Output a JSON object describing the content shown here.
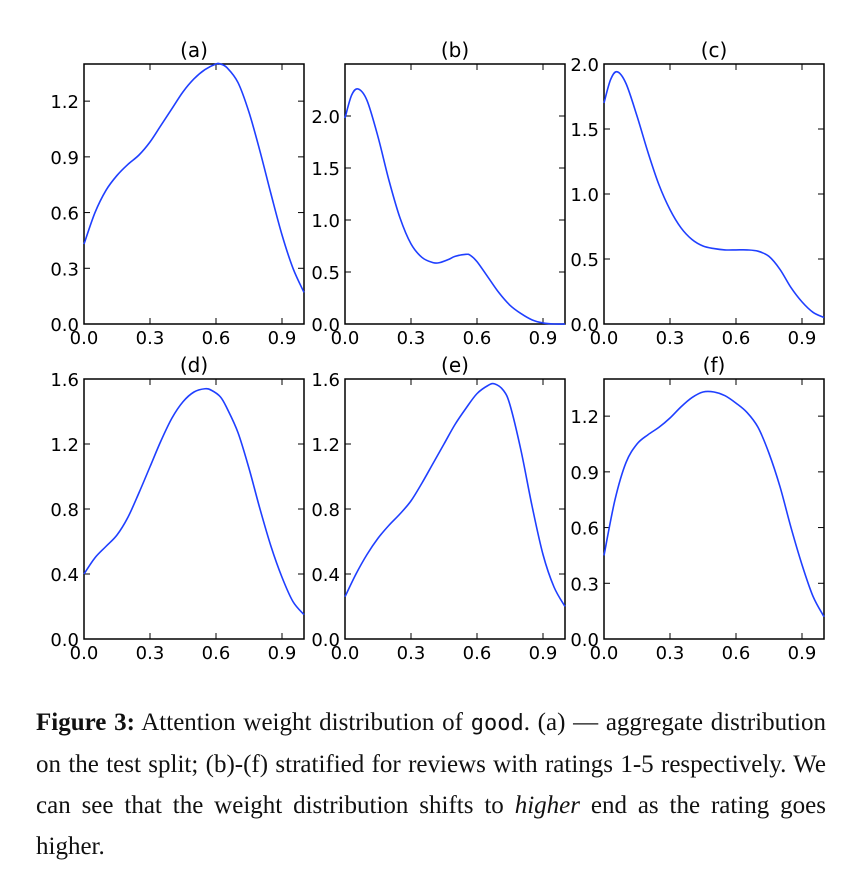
{
  "chart_data": [
    {
      "type": "line",
      "title": "(a)",
      "xlim": [
        0,
        1
      ],
      "ylim": [
        0,
        1.4
      ],
      "xticks": [
        "0.0",
        "0.3",
        "0.6",
        "0.9"
      ],
      "yticks": [
        "0.0",
        "0.3",
        "0.6",
        "0.9",
        "1.2"
      ],
      "x": [
        0,
        0.05,
        0.1,
        0.15,
        0.2,
        0.25,
        0.3,
        0.35,
        0.4,
        0.45,
        0.5,
        0.55,
        0.6,
        0.62,
        0.65,
        0.7,
        0.75,
        0.8,
        0.85,
        0.9,
        0.95,
        1.0
      ],
      "y": [
        0.43,
        0.6,
        0.72,
        0.8,
        0.86,
        0.91,
        0.98,
        1.07,
        1.16,
        1.25,
        1.32,
        1.37,
        1.4,
        1.4,
        1.38,
        1.3,
        1.14,
        0.93,
        0.7,
        0.48,
        0.3,
        0.17
      ]
    },
    {
      "type": "line",
      "title": "(b)",
      "xlim": [
        0,
        1
      ],
      "ylim": [
        0,
        2.5
      ],
      "xticks": [
        "0.0",
        "0.3",
        "0.6",
        "0.9"
      ],
      "yticks": [
        "0.0",
        "0.5",
        "1.0",
        "1.5",
        "2.0"
      ],
      "x": [
        0,
        0.03,
        0.06,
        0.1,
        0.15,
        0.2,
        0.25,
        0.3,
        0.35,
        0.4,
        0.43,
        0.47,
        0.5,
        0.55,
        0.57,
        0.6,
        0.65,
        0.7,
        0.75,
        0.8,
        0.85,
        0.9,
        0.95,
        1.0
      ],
      "y": [
        1.98,
        2.2,
        2.26,
        2.15,
        1.8,
        1.38,
        1.02,
        0.77,
        0.64,
        0.59,
        0.59,
        0.62,
        0.65,
        0.67,
        0.66,
        0.6,
        0.45,
        0.3,
        0.18,
        0.1,
        0.04,
        0.01,
        0.0,
        0.0
      ]
    },
    {
      "type": "line",
      "title": "(c)",
      "xlim": [
        0,
        1
      ],
      "ylim": [
        0,
        2.0
      ],
      "xticks": [
        "0.0",
        "0.3",
        "0.6",
        "0.9"
      ],
      "yticks": [
        "0.0",
        "0.5",
        "1.0",
        "1.5",
        "2.0"
      ],
      "x": [
        0,
        0.03,
        0.06,
        0.1,
        0.15,
        0.2,
        0.25,
        0.3,
        0.35,
        0.4,
        0.45,
        0.5,
        0.55,
        0.6,
        0.65,
        0.7,
        0.75,
        0.8,
        0.85,
        0.9,
        0.95,
        1.0
      ],
      "y": [
        1.7,
        1.88,
        1.94,
        1.85,
        1.6,
        1.32,
        1.07,
        0.88,
        0.74,
        0.65,
        0.6,
        0.58,
        0.57,
        0.57,
        0.57,
        0.56,
        0.52,
        0.42,
        0.28,
        0.17,
        0.09,
        0.05
      ]
    },
    {
      "type": "line",
      "title": "(d)",
      "xlim": [
        0,
        1
      ],
      "ylim": [
        0,
        1.6
      ],
      "xticks": [
        "0.0",
        "0.3",
        "0.6",
        "0.9"
      ],
      "yticks": [
        "0.0",
        "0.4",
        "0.8",
        "1.2",
        "1.6"
      ],
      "x": [
        0,
        0.05,
        0.1,
        0.15,
        0.2,
        0.25,
        0.3,
        0.35,
        0.4,
        0.45,
        0.5,
        0.55,
        0.58,
        0.62,
        0.65,
        0.7,
        0.75,
        0.8,
        0.85,
        0.9,
        0.95,
        1.0
      ],
      "y": [
        0.4,
        0.5,
        0.57,
        0.64,
        0.75,
        0.9,
        1.06,
        1.22,
        1.36,
        1.46,
        1.52,
        1.54,
        1.53,
        1.49,
        1.42,
        1.27,
        1.05,
        0.8,
        0.57,
        0.38,
        0.23,
        0.15
      ]
    },
    {
      "type": "line",
      "title": "(e)",
      "xlim": [
        0,
        1
      ],
      "ylim": [
        0,
        1.6
      ],
      "xticks": [
        "0.0",
        "0.3",
        "0.6",
        "0.9"
      ],
      "yticks": [
        "0.0",
        "0.4",
        "0.8",
        "1.2",
        "1.6"
      ],
      "x": [
        0,
        0.05,
        0.1,
        0.15,
        0.2,
        0.25,
        0.3,
        0.35,
        0.4,
        0.45,
        0.5,
        0.55,
        0.6,
        0.65,
        0.68,
        0.72,
        0.75,
        0.8,
        0.85,
        0.9,
        0.95,
        1.0
      ],
      "y": [
        0.26,
        0.4,
        0.52,
        0.62,
        0.7,
        0.77,
        0.85,
        0.96,
        1.08,
        1.2,
        1.32,
        1.42,
        1.51,
        1.56,
        1.57,
        1.53,
        1.44,
        1.16,
        0.82,
        0.52,
        0.32,
        0.2
      ]
    },
    {
      "type": "line",
      "title": "(f)",
      "xlim": [
        0,
        1
      ],
      "ylim": [
        0,
        1.4
      ],
      "xticks": [
        "0.0",
        "0.3",
        "0.6",
        "0.9"
      ],
      "yticks": [
        "0.0",
        "0.3",
        "0.6",
        "0.9",
        "1.2"
      ],
      "x": [
        0,
        0.05,
        0.1,
        0.15,
        0.2,
        0.25,
        0.3,
        0.35,
        0.4,
        0.45,
        0.5,
        0.55,
        0.6,
        0.65,
        0.7,
        0.75,
        0.8,
        0.85,
        0.9,
        0.95,
        1.0
      ],
      "y": [
        0.45,
        0.75,
        0.95,
        1.05,
        1.1,
        1.14,
        1.19,
        1.25,
        1.3,
        1.33,
        1.33,
        1.31,
        1.27,
        1.22,
        1.14,
        1.0,
        0.82,
        0.6,
        0.4,
        0.23,
        0.12
      ]
    }
  ],
  "caption": {
    "label": "Figure 3:",
    "text_before": " Attention weight distribution of ",
    "code": "good",
    "text_middle": ". (a) — aggregate distribution on the test split; (b)-(f) stratified for reviews with ratings 1-5 respectively. We can see that the weight distribution shifts to ",
    "emphasis": "higher",
    "text_after": " end as the rating goes higher."
  },
  "colors": {
    "line": "#1f3fff",
    "axes": "#000000"
  }
}
